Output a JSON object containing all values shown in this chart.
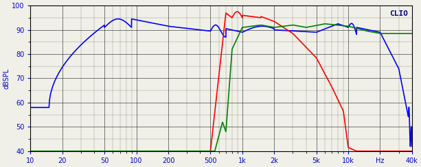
{
  "title": "CLIO",
  "ylabel": "dBSPL",
  "xlabel_ticks": [
    10,
    20,
    50,
    100,
    200,
    500,
    1000,
    2000,
    5000,
    10000,
    20000,
    40000
  ],
  "xlabel_labels": [
    "10",
    "20",
    "50",
    "100",
    "200",
    "500",
    "1k",
    "2k",
    "5k",
    "10k",
    "Hz",
    "40k"
  ],
  "xmin": 10,
  "xmax": 40000,
  "ymin": 40,
  "ymax": 100,
  "yticks": [
    40,
    50,
    60,
    70,
    80,
    90,
    100
  ],
  "background_color": "#f0f0e8",
  "grid_color": "#000000",
  "blue_color": "#0000ff",
  "red_color": "#ff0000",
  "green_color": "#008000",
  "line_width": 1.2,
  "title_color": "#000080",
  "label_color": "#0000cc"
}
